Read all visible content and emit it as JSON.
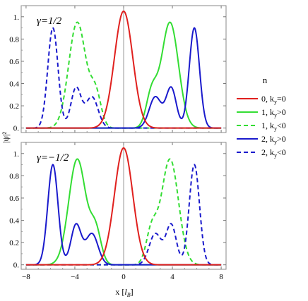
{
  "chart_data": {
    "type": "line",
    "ylabel": "|ψ|²",
    "xlabel": "x [l_B]",
    "xlim": [
      -8.4,
      8.4
    ],
    "ylim": [
      -0.04,
      1.1
    ],
    "x_ticks": [
      -8,
      -4,
      0,
      4,
      8
    ],
    "y_ticks": [
      0,
      0.2,
      0.4,
      0.6,
      0.8,
      1.0
    ],
    "y_tick_labels": [
      "0.",
      "0.2",
      "0.4",
      "0.6",
      "0.8",
      "1."
    ],
    "legend": {
      "title": "n",
      "placement": "right",
      "entries": [
        {
          "label": "0, k",
          "sub": "y",
          "rest": "=0",
          "color": "#e0201e",
          "dash": false
        },
        {
          "label": "1, k",
          "sub": "y",
          "rest": ">0",
          "color": "#33dd33",
          "dash": false
        },
        {
          "label": "1, k",
          "sub": "y",
          "rest": "<0",
          "color": "#33dd33",
          "dash": true
        },
        {
          "label": "2, k",
          "sub": "y",
          "rest": ">0",
          "color": "#1a1acc",
          "dash": false
        },
        {
          "label": "2, k",
          "sub": "y",
          "rest": "<0",
          "color": "#1a1acc",
          "dash": true
        }
      ]
    },
    "panels": [
      {
        "label": "γ=1/2",
        "series": [
          {
            "name": "0, ky=0",
            "color": "#e0201e",
            "dash": false,
            "peaks": [
              [
                0,
                1.05,
                0.75
              ]
            ]
          },
          {
            "name": "1, ky>0",
            "color": "#33dd33",
            "dash": false,
            "peaks": [
              [
                3.8,
                0.95,
                0.7
              ],
              [
                2.3,
                0.3,
                0.45
              ]
            ]
          },
          {
            "name": "1, ky<0",
            "color": "#33dd33",
            "dash": true,
            "peaks": [
              [
                -3.8,
                0.95,
                0.7
              ],
              [
                -2.3,
                0.3,
                0.45
              ]
            ]
          },
          {
            "name": "2, ky>0",
            "color": "#1a1acc",
            "dash": false,
            "peaks": [
              [
                5.8,
                0.9,
                0.42
              ],
              [
                3.9,
                0.36,
                0.42
              ],
              [
                2.6,
                0.28,
                0.5
              ]
            ]
          },
          {
            "name": "2, ky<0",
            "color": "#1a1acc",
            "dash": true,
            "peaks": [
              [
                -5.8,
                0.9,
                0.42
              ],
              [
                -3.9,
                0.36,
                0.42
              ],
              [
                -2.6,
                0.28,
                0.5
              ]
            ]
          }
        ]
      },
      {
        "label": "γ=−1/2",
        "series": [
          {
            "name": "0, ky=0",
            "color": "#e0201e",
            "dash": false,
            "peaks": [
              [
                0,
                1.05,
                0.75
              ]
            ]
          },
          {
            "name": "1, ky>0",
            "color": "#33dd33",
            "dash": false,
            "peaks": [
              [
                -3.8,
                0.95,
                0.7
              ],
              [
                -2.3,
                0.3,
                0.45
              ]
            ]
          },
          {
            "name": "1, ky<0",
            "color": "#33dd33",
            "dash": true,
            "peaks": [
              [
                3.8,
                0.95,
                0.7
              ],
              [
                2.3,
                0.3,
                0.45
              ]
            ]
          },
          {
            "name": "2, ky>0",
            "color": "#1a1acc",
            "dash": false,
            "peaks": [
              [
                -5.8,
                0.9,
                0.42
              ],
              [
                -3.9,
                0.36,
                0.42
              ],
              [
                -2.6,
                0.28,
                0.5
              ]
            ]
          },
          {
            "name": "2, ky<0",
            "color": "#1a1acc",
            "dash": true,
            "peaks": [
              [
                5.8,
                0.9,
                0.42
              ],
              [
                3.9,
                0.36,
                0.42
              ],
              [
                2.6,
                0.28,
                0.5
              ]
            ]
          }
        ]
      }
    ]
  }
}
